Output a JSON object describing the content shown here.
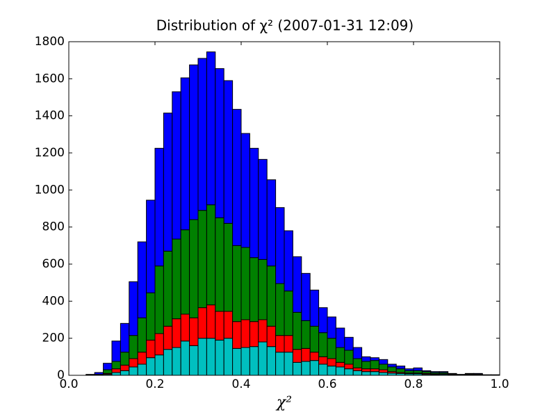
{
  "chart_data": {
    "type": "histogram",
    "stacked": true,
    "title": "Distribution of χ²  (2007-01-31 12:09)",
    "x_label": "χ²",
    "bins": [
      0,
      0.02,
      0.04,
      0.06,
      0.08,
      0.1,
      0.12,
      0.14,
      0.16,
      0.18,
      0.2,
      0.22,
      0.24,
      0.26,
      0.28,
      0.3,
      0.32,
      0.34,
      0.36,
      0.38,
      0.4,
      0.42,
      0.44,
      0.46,
      0.48,
      0.5,
      0.52,
      0.54,
      0.56,
      0.58,
      0.6,
      0.62,
      0.64,
      0.66,
      0.68,
      0.7,
      0.72,
      0.74,
      0.76,
      0.78,
      0.8,
      0.82,
      0.84,
      0.86,
      0.88,
      0.9,
      0.92,
      0.94,
      0.96,
      0.98,
      1
    ],
    "series": [
      {
        "color": "#00bfbf",
        "values": [
          0,
          0,
          0,
          1,
          5,
          15,
          25,
          45,
          60,
          95,
          110,
          140,
          150,
          185,
          160,
          200,
          200,
          190,
          200,
          145,
          150,
          155,
          180,
          155,
          125,
          125,
          70,
          75,
          80,
          60,
          50,
          45,
          35,
          25,
          20,
          20,
          15,
          12,
          10,
          8,
          8,
          5,
          4,
          5,
          2,
          1,
          2,
          1,
          0,
          0
        ]
      },
      {
        "color": "#ff0000",
        "values": [
          0,
          0,
          0,
          1,
          5,
          20,
          30,
          45,
          65,
          95,
          115,
          125,
          155,
          145,
          150,
          165,
          180,
          155,
          145,
          145,
          150,
          135,
          120,
          110,
          90,
          90,
          70,
          70,
          45,
          40,
          40,
          25,
          25,
          15,
          15,
          15,
          15,
          8,
          5,
          4,
          4,
          5,
          4,
          3,
          2,
          1,
          2,
          2,
          1,
          1
        ]
      },
      {
        "color": "#008000",
        "values": [
          0,
          0,
          2,
          3,
          20,
          40,
          70,
          125,
          185,
          255,
          365,
          405,
          430,
          455,
          530,
          525,
          540,
          505,
          475,
          410,
          390,
          345,
          325,
          325,
          280,
          240,
          200,
          150,
          140,
          130,
          110,
          80,
          75,
          50,
          40,
          45,
          30,
          25,
          20,
          13,
          13,
          10,
          7,
          7,
          4,
          2,
          4,
          3,
          1,
          1
        ]
      },
      {
        "color": "#0000ff",
        "values": [
          0,
          0,
          3,
          10,
          35,
          110,
          155,
          290,
          410,
          500,
          635,
          745,
          795,
          820,
          835,
          820,
          825,
          805,
          770,
          735,
          615,
          590,
          540,
          465,
          410,
          325,
          300,
          255,
          195,
          135,
          115,
          105,
          70,
          60,
          25,
          15,
          25,
          15,
          15,
          10,
          15,
          5,
          5,
          5,
          2,
          1,
          2,
          4,
          1,
          1
        ]
      }
    ],
    "xlim": [
      0,
      1
    ],
    "xticks": [
      {
        "value": 0,
        "label": "0.0"
      },
      {
        "value": 0.2,
        "label": "0.2"
      },
      {
        "value": 0.4,
        "label": "0.4"
      },
      {
        "value": 0.6,
        "label": "0.6"
      },
      {
        "value": 0.8,
        "label": "0.8"
      },
      {
        "value": 1,
        "label": "1.0"
      }
    ],
    "ylim": [
      0,
      1800
    ],
    "yticks": [
      0,
      200,
      400,
      600,
      800,
      1000,
      1200,
      1400,
      1600,
      1800
    ],
    "grid": false
  }
}
